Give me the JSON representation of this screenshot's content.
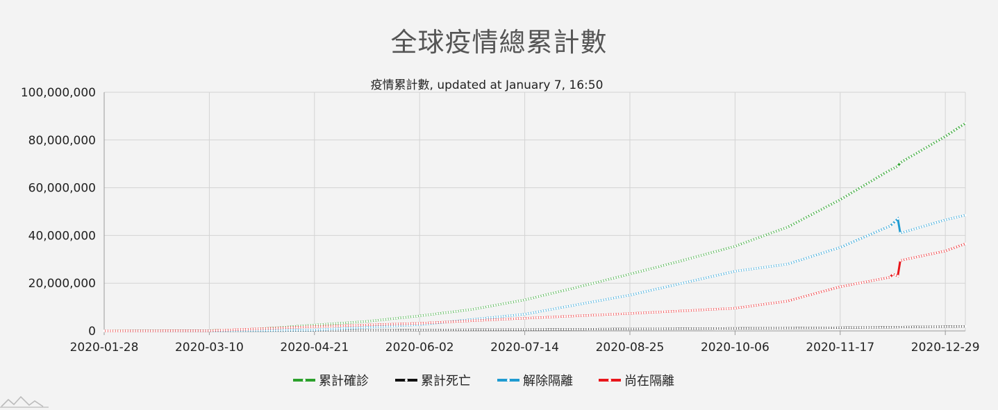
{
  "page": {
    "title": "全球疫情總累計數"
  },
  "chart_data": {
    "type": "line",
    "subtitle": "疫情累計數, updated at January 7, 16:50",
    "x_ticks": [
      "2020-01-28",
      "2020-03-10",
      "2020-04-21",
      "2020-06-02",
      "2020-07-14",
      "2020-08-25",
      "2020-10-06",
      "2020-11-17",
      "2020-12-29"
    ],
    "y_ticks": [
      "0",
      "20,000,000",
      "40,000,000",
      "60,000,000",
      "80,000,000",
      "100,000,000"
    ],
    "ylim": [
      0,
      100000000
    ],
    "xlim": [
      "2020-01-28",
      "2021-01-06"
    ],
    "grid": true,
    "legend_position": "bottom",
    "series": [
      {
        "name": "累計確診",
        "color": "#2ca02c",
        "points": [
          [
            "2020-01-28",
            0
          ],
          [
            "2020-02-18",
            80000
          ],
          [
            "2020-03-10",
            150000
          ],
          [
            "2020-03-24",
            500000
          ],
          [
            "2020-04-07",
            1400000
          ],
          [
            "2020-04-21",
            2500000
          ],
          [
            "2020-05-12",
            4000000
          ],
          [
            "2020-06-02",
            6300000
          ],
          [
            "2020-06-23",
            9000000
          ],
          [
            "2020-07-14",
            13000000
          ],
          [
            "2020-08-04",
            18300000
          ],
          [
            "2020-08-25",
            23800000
          ],
          [
            "2020-09-15",
            29500000
          ],
          [
            "2020-10-06",
            35500000
          ],
          [
            "2020-10-27",
            43500000
          ],
          [
            "2020-11-17",
            55000000
          ],
          [
            "2020-12-07",
            67500000
          ],
          [
            "2020-12-10",
            69000000
          ],
          [
            "2020-12-11",
            70500000
          ],
          [
            "2020-12-29",
            81500000
          ],
          [
            "2021-01-06",
            87000000
          ]
        ]
      },
      {
        "name": "累計死亡",
        "color": "#111111",
        "points": [
          [
            "2020-01-28",
            0
          ],
          [
            "2020-03-10",
            4000
          ],
          [
            "2020-04-21",
            180000
          ],
          [
            "2020-06-02",
            380000
          ],
          [
            "2020-07-14",
            580000
          ],
          [
            "2020-08-25",
            810000
          ],
          [
            "2020-10-06",
            1050000
          ],
          [
            "2020-11-17",
            1330000
          ],
          [
            "2020-12-29",
            1790000
          ],
          [
            "2021-01-06",
            1880000
          ]
        ]
      },
      {
        "name": "解除隔離",
        "color": "#1f9bd1",
        "points": [
          [
            "2020-01-28",
            0
          ],
          [
            "2020-03-10",
            60000
          ],
          [
            "2020-04-21",
            400000
          ],
          [
            "2020-06-02",
            2600000
          ],
          [
            "2020-07-14",
            7000000
          ],
          [
            "2020-08-25",
            15000000
          ],
          [
            "2020-10-06",
            25000000
          ],
          [
            "2020-10-27",
            28000000
          ],
          [
            "2020-11-17",
            35000000
          ],
          [
            "2020-12-07",
            44000000
          ],
          [
            "2020-12-10",
            47000000
          ],
          [
            "2020-12-11",
            41000000
          ],
          [
            "2020-12-29",
            46500000
          ],
          [
            "2021-01-06",
            48500000
          ]
        ]
      },
      {
        "name": "尚在隔離",
        "color": "#e8161b",
        "points": [
          [
            "2020-01-28",
            0
          ],
          [
            "2020-03-10",
            80000
          ],
          [
            "2020-04-21",
            1800000
          ],
          [
            "2020-06-02",
            3200000
          ],
          [
            "2020-07-14",
            5300000
          ],
          [
            "2020-08-25",
            7300000
          ],
          [
            "2020-10-06",
            9500000
          ],
          [
            "2020-10-27",
            12500000
          ],
          [
            "2020-11-17",
            18500000
          ],
          [
            "2020-12-07",
            22500000
          ],
          [
            "2020-12-08",
            23800000
          ],
          [
            "2020-12-10",
            23000000
          ],
          [
            "2020-12-11",
            29500000
          ],
          [
            "2020-12-29",
            33500000
          ],
          [
            "2021-01-06",
            36500000
          ]
        ]
      }
    ]
  }
}
